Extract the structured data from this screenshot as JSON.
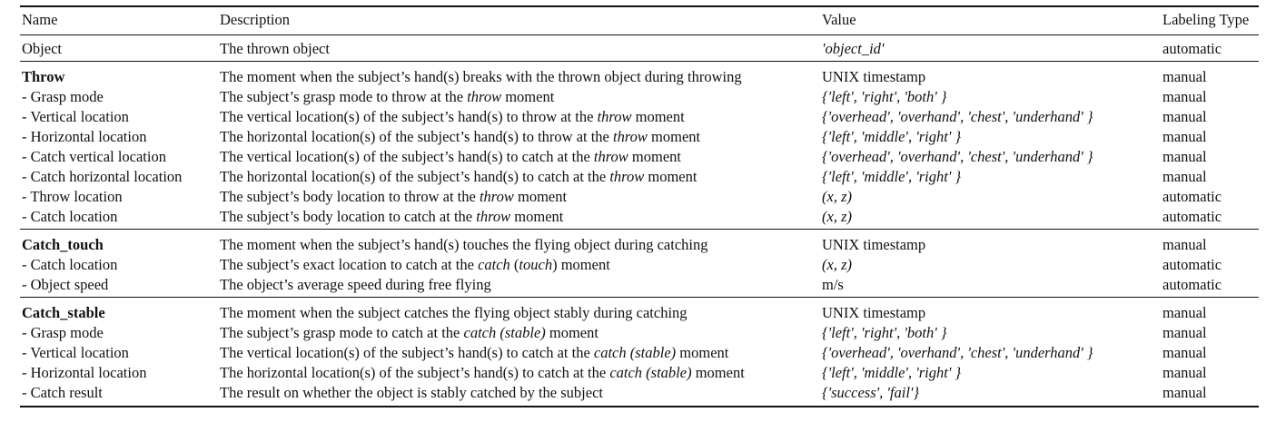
{
  "table": {
    "headers": {
      "name": "Name",
      "description": "Description",
      "value": "Value",
      "labeling_type": "Labeling Type"
    },
    "groups": [
      {
        "rows": [
          {
            "name": "Object",
            "bold": false,
            "desc_parts": [
              {
                "t": "The thrown object"
              }
            ],
            "value": "'object_id'",
            "value_italic": true,
            "type": "automatic"
          }
        ]
      },
      {
        "rows": [
          {
            "name": "Throw",
            "bold": true,
            "desc_parts": [
              {
                "t": "The moment when the subject’s hand(s) breaks with the thrown object during throwing"
              }
            ],
            "value": "UNIX timestamp",
            "value_italic": false,
            "type": "manual"
          },
          {
            "name": "- Grasp mode",
            "bold": false,
            "desc_parts": [
              {
                "t": "The subject’s grasp mode to throw at the "
              },
              {
                "t": "throw",
                "i": true
              },
              {
                "t": " moment"
              }
            ],
            "value": "{'left', 'right', 'both' }",
            "value_italic": true,
            "type": "manual"
          },
          {
            "name": "- Vertical location",
            "bold": false,
            "desc_parts": [
              {
                "t": "The vertical location(s) of the subject’s hand(s) to throw at the "
              },
              {
                "t": "throw",
                "i": true
              },
              {
                "t": " moment"
              }
            ],
            "value": "{'overhead', 'overhand', 'chest', 'underhand' }",
            "value_italic": true,
            "type": "manual"
          },
          {
            "name": "- Horizontal location",
            "bold": false,
            "desc_parts": [
              {
                "t": "The horizontal location(s) of the subject’s hand(s) to throw at the "
              },
              {
                "t": "throw",
                "i": true
              },
              {
                "t": " moment"
              }
            ],
            "value": "{'left', 'middle', 'right' }",
            "value_italic": true,
            "type": "manual"
          },
          {
            "name": "- Catch vertical location",
            "bold": false,
            "desc_parts": [
              {
                "t": "The vertical location(s) of the subject’s hand(s) to catch at the "
              },
              {
                "t": "throw",
                "i": true
              },
              {
                "t": " moment"
              }
            ],
            "value": "{'overhead', 'overhand', 'chest', 'underhand' }",
            "value_italic": true,
            "type": "manual"
          },
          {
            "name": "- Catch horizontal location",
            "bold": false,
            "desc_parts": [
              {
                "t": "The horizontal location(s) of the subject’s hand(s) to catch at the "
              },
              {
                "t": "throw",
                "i": true
              },
              {
                "t": " moment"
              }
            ],
            "value": "{'left', 'middle', 'right' }",
            "value_italic": true,
            "type": "manual"
          },
          {
            "name": "- Throw location",
            "bold": false,
            "desc_parts": [
              {
                "t": "The subject’s body location to throw at the "
              },
              {
                "t": "throw",
                "i": true
              },
              {
                "t": " moment"
              }
            ],
            "value": "(x, z)",
            "value_italic": true,
            "type": "automatic"
          },
          {
            "name": "- Catch location",
            "bold": false,
            "desc_parts": [
              {
                "t": "The subject’s body location to catch at the "
              },
              {
                "t": "throw",
                "i": true
              },
              {
                "t": " moment"
              }
            ],
            "value": "(x, z)",
            "value_italic": true,
            "type": "automatic"
          }
        ]
      },
      {
        "rows": [
          {
            "name": "Catch_touch",
            "bold": true,
            "desc_parts": [
              {
                "t": "The moment when the subject’s hand(s) touches the flying object during catching"
              }
            ],
            "value": "UNIX timestamp",
            "value_italic": false,
            "type": "manual"
          },
          {
            "name": "- Catch location",
            "bold": false,
            "desc_parts": [
              {
                "t": "The subject’s exact location to catch at the "
              },
              {
                "t": "catch",
                "i": true
              },
              {
                "t": " ("
              },
              {
                "t": "touch",
                "i": true
              },
              {
                "t": ") moment"
              }
            ],
            "value": "(x, z)",
            "value_italic": true,
            "type": "automatic"
          },
          {
            "name": "- Object speed",
            "bold": false,
            "desc_parts": [
              {
                "t": "The object’s average speed during free flying"
              }
            ],
            "value": "m/s",
            "value_italic": false,
            "type": "automatic"
          }
        ]
      },
      {
        "rows": [
          {
            "name": "Catch_stable",
            "bold": true,
            "desc_parts": [
              {
                "t": "The moment when the subject catches the flying object stably during catching"
              }
            ],
            "value": "UNIX timestamp",
            "value_italic": false,
            "type": "manual"
          },
          {
            "name": "- Grasp mode",
            "bold": false,
            "desc_parts": [
              {
                "t": "The subject’s grasp mode to catch at the "
              },
              {
                "t": "catch (stable)",
                "i": true
              },
              {
                "t": " moment"
              }
            ],
            "value": "{'left', 'right', 'both' }",
            "value_italic": true,
            "type": "manual"
          },
          {
            "name": "- Vertical location",
            "bold": false,
            "desc_parts": [
              {
                "t": "The vertical location(s) of the subject’s hand(s) to catch at the "
              },
              {
                "t": "catch (stable)",
                "i": true
              },
              {
                "t": " moment"
              }
            ],
            "value": "{'overhead', 'overhand', 'chest', 'underhand' }",
            "value_italic": true,
            "type": "manual"
          },
          {
            "name": "- Horizontal location",
            "bold": false,
            "desc_parts": [
              {
                "t": "The horizontal location(s) of the subject’s hand(s) to catch at the "
              },
              {
                "t": "catch (stable)",
                "i": true
              },
              {
                "t": " moment"
              }
            ],
            "value": "{'left', 'middle', 'right' }",
            "value_italic": true,
            "type": "manual"
          },
          {
            "name": "- Catch result",
            "bold": false,
            "desc_parts": [
              {
                "t": "The result on whether the object is stably catched by the subject"
              }
            ],
            "value": "{'success', 'fail'}",
            "value_italic": true,
            "type": "manual"
          }
        ]
      }
    ]
  }
}
